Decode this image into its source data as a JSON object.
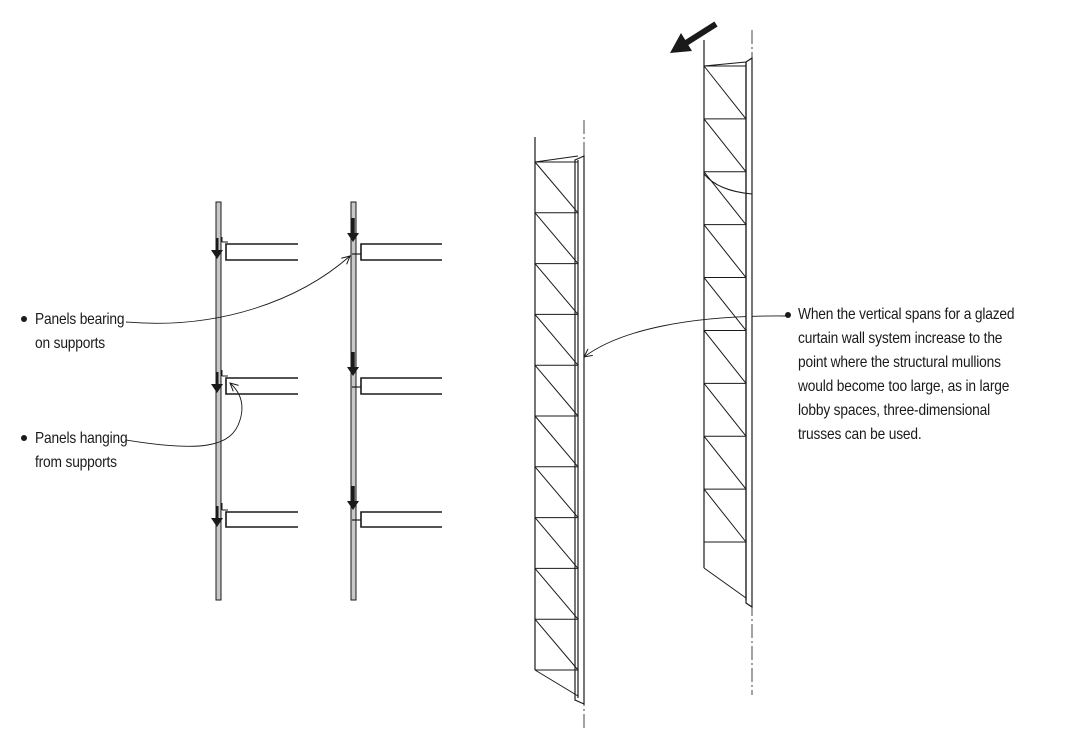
{
  "annotations": {
    "bearing": {
      "line1": "Panels bearing",
      "line2": "on supports"
    },
    "hanging": {
      "line1": "Panels hanging",
      "line2": "from supports"
    },
    "truss": {
      "line1": "When the vertical spans for a glazed",
      "line2": "curtain wall system increase to the",
      "line3": "point where the structural mullions",
      "line4": "would become too large, as in large",
      "line5": "lobby spaces, three-dimensional",
      "line6": "trusses can be used."
    }
  },
  "colors": {
    "ink": "#1a1a1a",
    "column_fill": "#c8c8c8",
    "paper": "#ffffff"
  }
}
